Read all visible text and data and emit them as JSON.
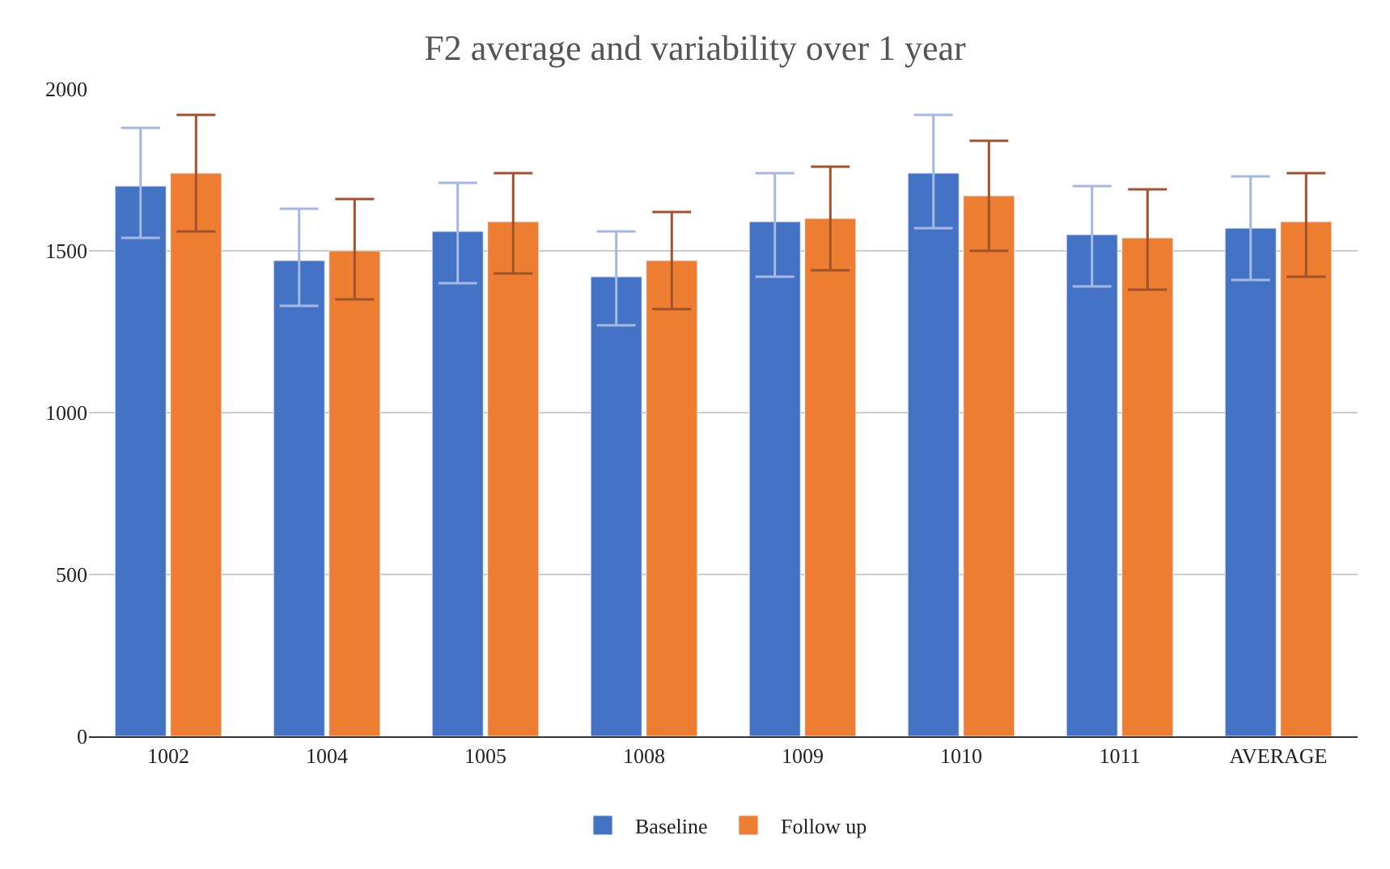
{
  "chart_data": {
    "type": "bar",
    "title": "F2 average and variability over 1 year",
    "categories": [
      "1002",
      "1004",
      "1005",
      "1008",
      "1009",
      "1010",
      "1011",
      "AVERAGE"
    ],
    "series": [
      {
        "name": "Baseline",
        "color": "#4472c4",
        "values": [
          1700,
          1470,
          1560,
          1420,
          1590,
          1740,
          1550,
          1570
        ],
        "errors": [
          [
            1540,
            1880
          ],
          [
            1330,
            1630
          ],
          [
            1400,
            1710
          ],
          [
            1270,
            1560
          ],
          [
            1420,
            1740
          ],
          [
            1570,
            1920
          ],
          [
            1390,
            1700
          ],
          [
            1410,
            1730
          ]
        ]
      },
      {
        "name": "Follow up",
        "color": "#ed7d31",
        "values": [
          1740,
          1500,
          1590,
          1470,
          1600,
          1670,
          1540,
          1590
        ],
        "errors": [
          [
            1560,
            1920
          ],
          [
            1350,
            1660
          ],
          [
            1430,
            1740
          ],
          [
            1320,
            1620
          ],
          [
            1440,
            1760
          ],
          [
            1500,
            1840
          ],
          [
            1380,
            1690
          ],
          [
            1420,
            1740
          ]
        ]
      }
    ],
    "ylim": [
      0,
      2000
    ],
    "yticks": [
      0,
      500,
      1000,
      1500,
      2000
    ],
    "grid": "y",
    "legend": "bottom"
  }
}
